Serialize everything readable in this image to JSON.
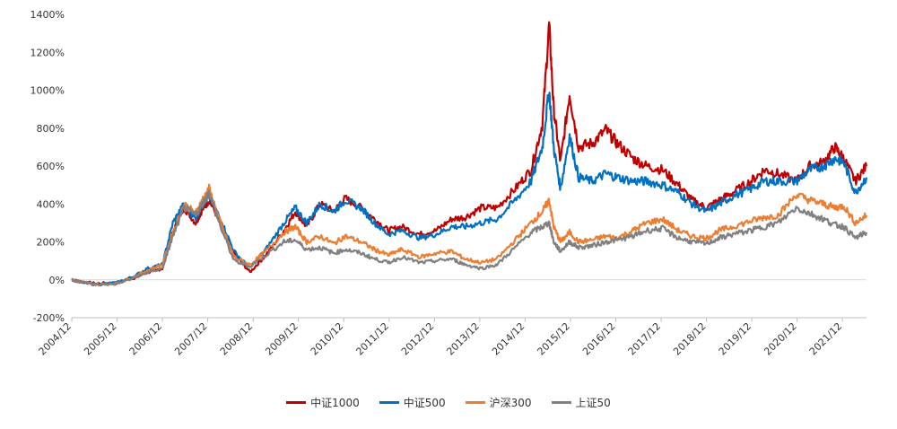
{
  "chart_data": {
    "type": "line",
    "ylim": [
      -200,
      1400
    ],
    "yticks": [
      -200,
      0,
      200,
      400,
      600,
      800,
      1000,
      1200,
      1400
    ],
    "ytick_labels": [
      "-200%",
      "0%",
      "200%",
      "400%",
      "600%",
      "800%",
      "1000%",
      "1200%",
      "1400%"
    ],
    "xticks": [
      2004.92,
      2005.92,
      2006.92,
      2007.92,
      2008.92,
      2009.92,
      2010.92,
      2011.92,
      2012.92,
      2013.92,
      2014.92,
      2015.92,
      2016.92,
      2017.92,
      2018.92,
      2019.92,
      2020.92,
      2021.92
    ],
    "xtick_labels": [
      "2004/12",
      "2005/12",
      "2006/12",
      "2007/12",
      "2008/12",
      "2009/12",
      "2010/12",
      "2011/12",
      "2012/12",
      "2013/12",
      "2014/12",
      "2015/12",
      "2016/12",
      "2017/12",
      "2018/12",
      "2019/12",
      "2020/12",
      "2021/12"
    ],
    "xlim": [
      2004.92,
      2022.45
    ],
    "x": [
      2004.92,
      2005.1,
      2005.45,
      2005.92,
      2006.3,
      2006.6,
      2006.92,
      2007.15,
      2007.4,
      2007.65,
      2007.8,
      2007.95,
      2008.2,
      2008.5,
      2008.85,
      2009.2,
      2009.6,
      2009.85,
      2010.1,
      2010.4,
      2010.7,
      2010.95,
      2011.3,
      2011.6,
      2011.9,
      2012.2,
      2012.6,
      2012.95,
      2013.3,
      2013.6,
      2013.95,
      2014.3,
      2014.7,
      2015.05,
      2015.3,
      2015.45,
      2015.55,
      2015.7,
      2015.9,
      2016.1,
      2016.4,
      2016.7,
      2016.95,
      2017.3,
      2017.6,
      2017.95,
      2018.3,
      2018.6,
      2018.92,
      2019.2,
      2019.5,
      2019.9,
      2020.2,
      2020.5,
      2020.9,
      2021.2,
      2021.5,
      2021.75,
      2021.95,
      2022.2,
      2022.45
    ],
    "series": [
      {
        "name": "中证1000",
        "color": "#C00000",
        "values": [
          0,
          -10,
          -20,
          -15,
          10,
          40,
          60,
          250,
          380,
          300,
          370,
          420,
          300,
          140,
          40,
          130,
          260,
          360,
          280,
          400,
          360,
          430,
          380,
          320,
          260,
          280,
          240,
          260,
          320,
          330,
          380,
          380,
          480,
          580,
          820,
          1350,
          900,
          620,
          980,
          700,
          720,
          790,
          720,
          640,
          600,
          580,
          500,
          420,
          380,
          420,
          460,
          520,
          580,
          560,
          520,
          600,
          620,
          700,
          640,
          520,
          600
        ]
      },
      {
        "name": "中证500",
        "color": "#0070C0",
        "values": [
          0,
          -10,
          -25,
          -15,
          20,
          60,
          80,
          300,
          400,
          320,
          400,
          440,
          320,
          150,
          60,
          160,
          300,
          380,
          300,
          400,
          360,
          420,
          380,
          300,
          240,
          260,
          220,
          240,
          280,
          280,
          300,
          320,
          420,
          520,
          700,
          1000,
          700,
          480,
          760,
          540,
          520,
          560,
          540,
          520,
          520,
          500,
          460,
          400,
          360,
          400,
          440,
          480,
          520,
          520,
          520,
          580,
          600,
          640,
          620,
          460,
          540
        ]
      },
      {
        "name": "沪深300",
        "color": "#ED7D31",
        "values": [
          0,
          -10,
          -25,
          -20,
          15,
          50,
          80,
          250,
          400,
          350,
          420,
          480,
          300,
          120,
          80,
          150,
          250,
          280,
          200,
          230,
          190,
          230,
          200,
          160,
          130,
          160,
          120,
          140,
          150,
          110,
          90,
          110,
          210,
          300,
          360,
          420,
          280,
          200,
          250,
          200,
          210,
          230,
          220,
          260,
          300,
          320,
          260,
          230,
          220,
          260,
          280,
          310,
          330,
          340,
          450,
          420,
          400,
          380,
          390,
          300,
          340
        ]
      },
      {
        "name": "上证50",
        "color": "#808080",
        "values": [
          0,
          -10,
          -25,
          -20,
          10,
          40,
          60,
          230,
          380,
          340,
          400,
          460,
          280,
          100,
          70,
          130,
          200,
          210,
          160,
          170,
          140,
          160,
          140,
          110,
          90,
          120,
          90,
          100,
          110,
          80,
          60,
          80,
          170,
          250,
          280,
          300,
          200,
          150,
          200,
          170,
          180,
          200,
          210,
          230,
          260,
          270,
          220,
          200,
          190,
          220,
          240,
          260,
          280,
          300,
          380,
          350,
          320,
          290,
          280,
          220,
          250
        ]
      }
    ]
  }
}
